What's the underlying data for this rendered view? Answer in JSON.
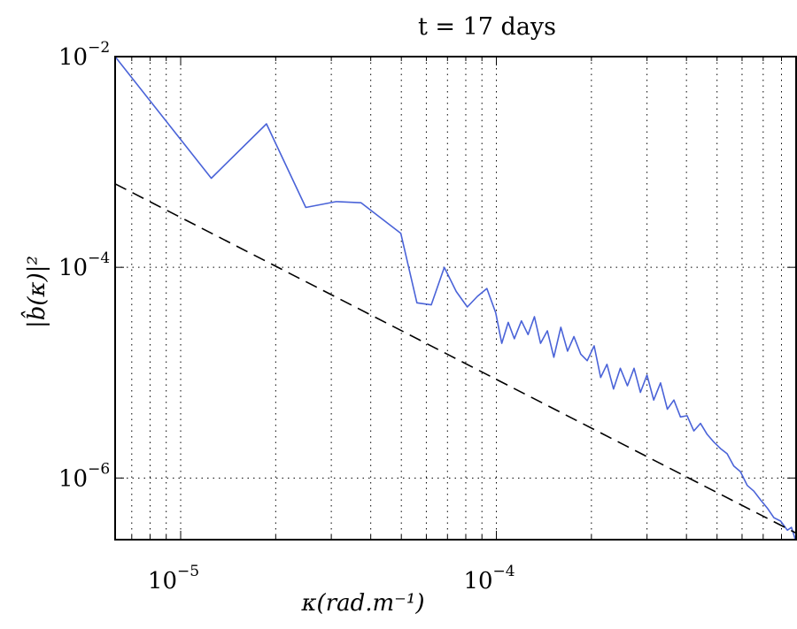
{
  "chart_data": {
    "type": "line",
    "title": "t = 17 days",
    "xlabel": "κ(rad.m⁻¹)",
    "ylabel": "|b̂(κ)|²",
    "xscale": "log",
    "yscale": "log",
    "xlim": [
      6.2e-06,
      0.00089
    ],
    "ylim": [
      2.6e-07,
      0.01
    ],
    "grid": true,
    "x_ticks": [
      {
        "value": 1e-05,
        "base": "10",
        "exp": "−5"
      },
      {
        "value": 0.0001,
        "base": "10",
        "exp": "−4"
      }
    ],
    "y_ticks": [
      {
        "value": 0.01,
        "base": "10",
        "exp": "−2"
      },
      {
        "value": 0.0001,
        "base": "10",
        "exp": "−4"
      },
      {
        "value": 1e-06,
        "base": "10",
        "exp": "−6"
      }
    ],
    "series": [
      {
        "style": "solid",
        "color": "#4a63d8",
        "x": [
          6.2e-06,
          1.25e-05,
          1.87e-05,
          2.49e-05,
          3.11e-05,
          3.73e-05,
          4.98e-05,
          5.6e-05,
          6.22e-05,
          6.84e-05,
          7.46e-05,
          8.09e-05,
          8.71e-05,
          9.33e-05,
          9.95e-05,
          0.000104,
          0.000109,
          0.000114,
          0.00012,
          0.000126,
          0.000132,
          0.000138,
          0.000145,
          0.000152,
          0.00016,
          0.000168,
          0.000176,
          0.000185,
          0.000194,
          0.000204,
          0.000214,
          0.000224,
          0.000235,
          0.000247,
          0.00026,
          0.000273,
          0.000286,
          0.0003,
          0.000315,
          0.000331,
          0.000348,
          0.000365,
          0.000383,
          0.000402,
          0.000422,
          0.000443,
          0.000465,
          0.000488,
          0.000513,
          0.000538,
          0.000565,
          0.000593,
          0.000623,
          0.000654,
          0.000687,
          0.000721,
          0.000757,
          0.000795,
          0.000835,
          0.00086,
          0.000875,
          0.000885
        ],
        "y": [
          0.01,
          0.0007,
          0.0023,
          0.00037,
          0.00042,
          0.00041,
          0.00021,
          4.6e-05,
          4.4e-05,
          0.0001,
          5.9e-05,
          4.2e-05,
          5.3e-05,
          6.3e-05,
          3.7e-05,
          1.9e-05,
          3e-05,
          2.1e-05,
          3.1e-05,
          2.3e-05,
          3.4e-05,
          1.9e-05,
          2.5e-05,
          1.4e-05,
          2.7e-05,
          1.6e-05,
          2.2e-05,
          1.5e-05,
          1.3e-05,
          1.8e-05,
          9e-06,
          1.2e-05,
          7e-06,
          1.1e-05,
          7.5e-06,
          1.1e-05,
          6.5e-06,
          9.5e-06,
          5.5e-06,
          8e-06,
          4.5e-06,
          5.5e-06,
          3.8e-06,
          3.9e-06,
          2.8e-06,
          3.3e-06,
          2.6e-06,
          2.2e-06,
          1.9e-06,
          1.7e-06,
          1.3e-06,
          1.15e-06,
          8.5e-07,
          7.5e-07,
          6.2e-07,
          5.2e-07,
          4.2e-07,
          3.9e-07,
          3.2e-07,
          3.4e-07,
          2.9e-07,
          2.6e-07
        ]
      },
      {
        "style": "dashed",
        "color": "#000000",
        "x": [
          6.2e-06,
          0.00089
        ],
        "y": [
          0.00062,
          3e-07
        ]
      }
    ]
  }
}
